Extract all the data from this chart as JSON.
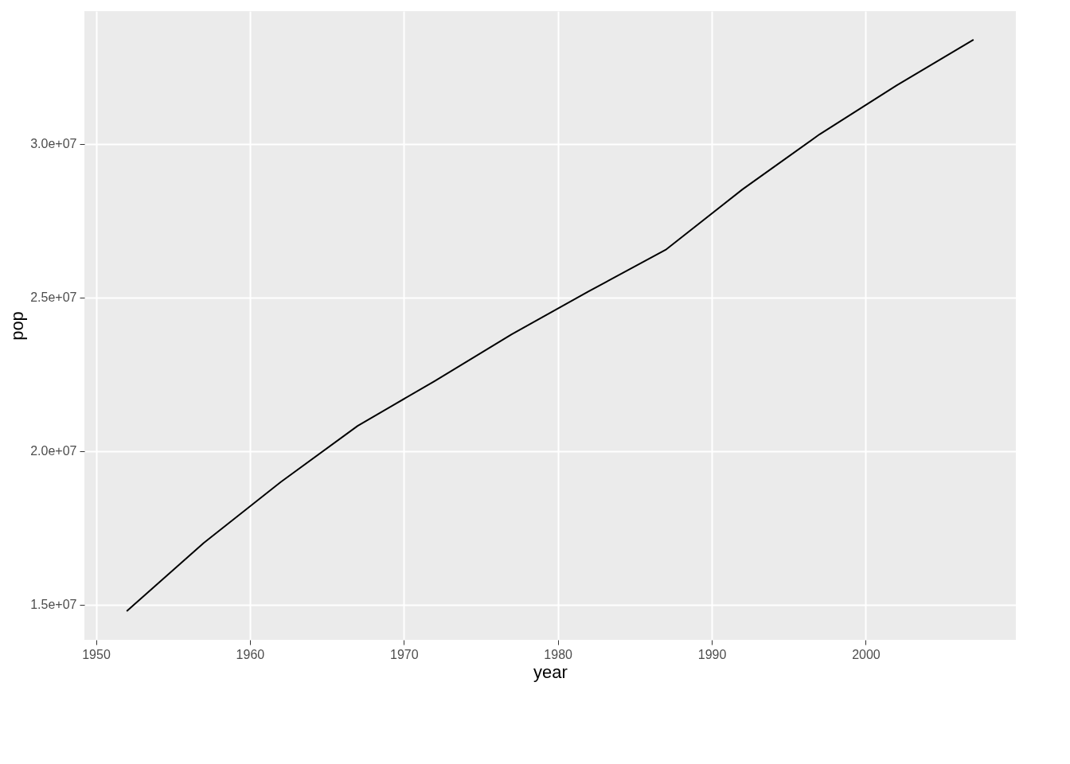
{
  "chart_data": {
    "type": "line",
    "xlabel": "year",
    "ylabel": "pop",
    "x": [
      1952,
      1957,
      1962,
      1967,
      1972,
      1977,
      1982,
      1987,
      1992,
      1997,
      2002,
      2007
    ],
    "series": [
      {
        "color": "#000000",
        "values": [
          14790000,
          17010000,
          18990000,
          20820000,
          22280000,
          23800000,
          25200000,
          26550000,
          28520000,
          30310000,
          31900000,
          33390000
        ]
      }
    ],
    "xlim": [
      1949.25,
      2009.75
    ],
    "xticks": [
      1950,
      1960,
      1970,
      1980,
      1990,
      2000
    ],
    "ylim": [
      13855356,
      34320369
    ],
    "yticks": [
      {
        "value": 15000000,
        "label": "1.5e+07"
      },
      {
        "value": 20000000,
        "label": "2.0e+07"
      },
      {
        "value": 25000000,
        "label": "2.5e+07"
      },
      {
        "value": 30000000,
        "label": "3.0e+07"
      }
    ],
    "grid": true,
    "line_style": "solid",
    "marker": "none"
  }
}
